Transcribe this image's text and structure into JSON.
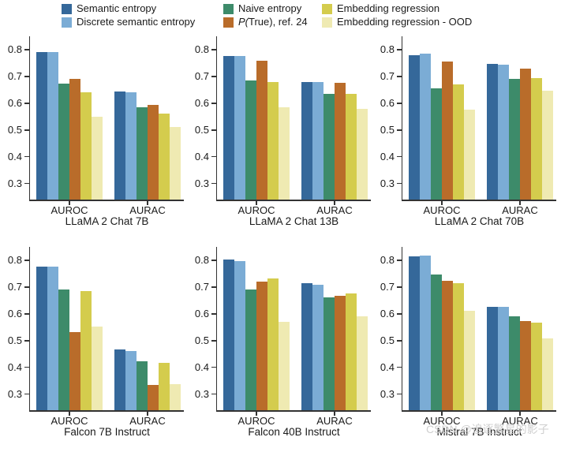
{
  "figure": {
    "watermark": "CSDN @追逐繁星的影子"
  },
  "legend": {
    "items": [
      {
        "label": "Semantic entropy",
        "color": "#35689a"
      },
      {
        "label": "Discrete semantic entropy",
        "color": "#7bacd5"
      },
      {
        "label": "Naive entropy",
        "color": "#3d8b6a"
      },
      {
        "label": "P(True), ref. 24",
        "color": "#b96c2a"
      },
      {
        "label": "Embedding regression",
        "color": "#d4cc4d"
      },
      {
        "label": "Embedding regression - OOD",
        "color": "#efeab2"
      }
    ]
  },
  "axis_style": {
    "yticks": [
      0.3,
      0.4,
      0.5,
      0.6,
      0.7,
      0.8
    ],
    "ylim": [
      0.24,
      0.85
    ],
    "grid": false,
    "legend_position": "top"
  },
  "chart_data": [
    {
      "type": "bar",
      "title": "LLaMA 2 Chat 7B",
      "categories": [
        "AUROC",
        "AURAC"
      ],
      "ylim": [
        0.24,
        0.85
      ],
      "yticks": [
        0.3,
        0.4,
        0.5,
        0.6,
        0.7,
        0.8
      ],
      "series": [
        {
          "name": "Semantic entropy",
          "values": [
            0.79,
            0.645
          ]
        },
        {
          "name": "Discrete semantic entropy",
          "values": [
            0.79,
            0.642
          ]
        },
        {
          "name": "Naive entropy",
          "values": [
            0.672,
            0.585
          ]
        },
        {
          "name": "P(True), ref. 24",
          "values": [
            0.69,
            0.595
          ]
        },
        {
          "name": "Embedding regression",
          "values": [
            0.64,
            0.562
          ]
        },
        {
          "name": "Embedding regression - OOD",
          "values": [
            0.55,
            0.512
          ]
        }
      ]
    },
    {
      "type": "bar",
      "title": "LLaMA 2 Chat 13B",
      "categories": [
        "AUROC",
        "AURAC"
      ],
      "ylim": [
        0.24,
        0.85
      ],
      "yticks": [
        0.3,
        0.4,
        0.5,
        0.6,
        0.7,
        0.8
      ],
      "series": [
        {
          "name": "Semantic entropy",
          "values": [
            0.775,
            0.68
          ]
        },
        {
          "name": "Discrete semantic entropy",
          "values": [
            0.775,
            0.678
          ]
        },
        {
          "name": "Naive entropy",
          "values": [
            0.685,
            0.635
          ]
        },
        {
          "name": "P(True), ref. 24",
          "values": [
            0.76,
            0.675
          ]
        },
        {
          "name": "Embedding regression",
          "values": [
            0.68,
            0.635
          ]
        },
        {
          "name": "Embedding regression - OOD",
          "values": [
            0.585,
            0.58
          ]
        }
      ]
    },
    {
      "type": "bar",
      "title": "LLaMA 2 Chat 70B",
      "categories": [
        "AUROC",
        "AURAC"
      ],
      "ylim": [
        0.24,
        0.85
      ],
      "yticks": [
        0.3,
        0.4,
        0.5,
        0.6,
        0.7,
        0.8
      ],
      "series": [
        {
          "name": "Semantic entropy",
          "values": [
            0.78,
            0.748
          ]
        },
        {
          "name": "Discrete semantic entropy",
          "values": [
            0.785,
            0.745
          ]
        },
        {
          "name": "Naive entropy",
          "values": [
            0.656,
            0.69
          ]
        },
        {
          "name": "P(True), ref. 24",
          "values": [
            0.756,
            0.728
          ]
        },
        {
          "name": "Embedding regression",
          "values": [
            0.67,
            0.695
          ]
        },
        {
          "name": "Embedding regression - OOD",
          "values": [
            0.576,
            0.646
          ]
        }
      ]
    },
    {
      "type": "bar",
      "title": "Falcon 7B Instruct",
      "categories": [
        "AUROC",
        "AURAC"
      ],
      "ylim": [
        0.24,
        0.85
      ],
      "yticks": [
        0.3,
        0.4,
        0.5,
        0.6,
        0.7,
        0.8
      ],
      "series": [
        {
          "name": "Semantic entropy",
          "values": [
            0.776,
            0.466
          ]
        },
        {
          "name": "Discrete semantic entropy",
          "values": [
            0.776,
            0.46
          ]
        },
        {
          "name": "Naive entropy",
          "values": [
            0.692,
            0.423
          ]
        },
        {
          "name": "P(True), ref. 24",
          "values": [
            0.532,
            0.333
          ]
        },
        {
          "name": "Embedding regression",
          "values": [
            0.684,
            0.417
          ]
        },
        {
          "name": "Embedding regression - OOD",
          "values": [
            0.551,
            0.338
          ]
        }
      ]
    },
    {
      "type": "bar",
      "title": "Falcon 40B Instruct",
      "categories": [
        "AUROC",
        "AURAC"
      ],
      "ylim": [
        0.24,
        0.85
      ],
      "yticks": [
        0.3,
        0.4,
        0.5,
        0.6,
        0.7,
        0.8
      ],
      "series": [
        {
          "name": "Semantic entropy",
          "values": [
            0.803,
            0.715
          ]
        },
        {
          "name": "Discrete semantic entropy",
          "values": [
            0.798,
            0.708
          ]
        },
        {
          "name": "Naive entropy",
          "values": [
            0.69,
            0.66
          ]
        },
        {
          "name": "P(True), ref. 24",
          "values": [
            0.72,
            0.666
          ]
        },
        {
          "name": "Embedding regression",
          "values": [
            0.732,
            0.676
          ]
        },
        {
          "name": "Embedding regression - OOD",
          "values": [
            0.57,
            0.59
          ]
        }
      ]
    },
    {
      "type": "bar",
      "title": "Mistral 7B Instruct",
      "categories": [
        "AUROC",
        "AURAC"
      ],
      "ylim": [
        0.24,
        0.85
      ],
      "yticks": [
        0.3,
        0.4,
        0.5,
        0.6,
        0.7,
        0.8
      ],
      "series": [
        {
          "name": "Semantic entropy",
          "values": [
            0.814,
            0.625
          ]
        },
        {
          "name": "Discrete semantic entropy",
          "values": [
            0.819,
            0.625
          ]
        },
        {
          "name": "Naive entropy",
          "values": [
            0.748,
            0.591
          ]
        },
        {
          "name": "P(True), ref. 24",
          "values": [
            0.722,
            0.572
          ]
        },
        {
          "name": "Embedding regression",
          "values": [
            0.713,
            0.568
          ]
        },
        {
          "name": "Embedding regression - OOD",
          "values": [
            0.612,
            0.507
          ]
        }
      ]
    }
  ]
}
